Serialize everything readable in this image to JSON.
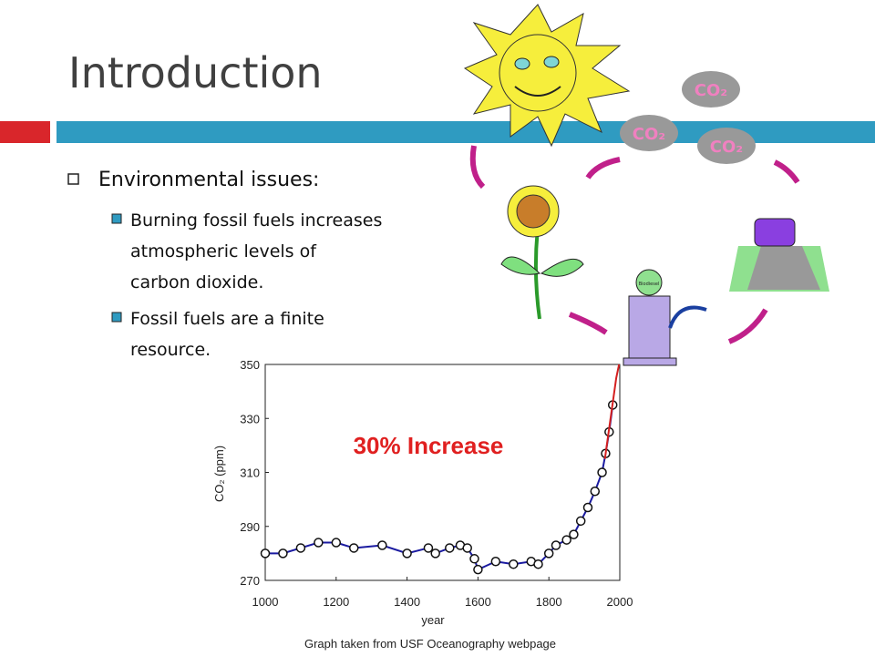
{
  "slide": {
    "title": "Introduction",
    "bullet": "Environmental issues:",
    "sub_bullets": [
      [
        "Burning fossil fuels increases",
        "atmospheric levels of",
        "carbon dioxide."
      ],
      [
        "Fossil fuels are a finite",
        "resource."
      ]
    ],
    "caption": "Graph taken from USF Oceanography webpage",
    "cloud_label": "CO₂",
    "pump_label": "Biodiesel"
  },
  "chart_data": {
    "type": "line",
    "annotation": "30% Increase",
    "xlabel": "year",
    "ylabel": "CO₂ (ppm)",
    "xlim": [
      1000,
      2000
    ],
    "ylim": [
      270,
      350
    ],
    "xticks": [
      1000,
      1200,
      1400,
      1600,
      1800,
      2000
    ],
    "yticks": [
      270,
      290,
      310,
      330,
      350
    ],
    "series": [
      {
        "color": "#1a1aa0",
        "markers": true,
        "x": [
          1000,
          1050,
          1100,
          1150,
          1200,
          1250,
          1330,
          1400,
          1460,
          1480,
          1520,
          1550,
          1570,
          1590,
          1600,
          1650,
          1700,
          1750,
          1770,
          1800,
          1820,
          1850,
          1870,
          1890,
          1910,
          1930,
          1950,
          1960,
          1970,
          1980
        ],
        "values": [
          280,
          280,
          282,
          284,
          284,
          282,
          283,
          280,
          282,
          280,
          282,
          283,
          282,
          278,
          274,
          277,
          276,
          277,
          276,
          280,
          283,
          285,
          287,
          292,
          297,
          303,
          310,
          317,
          325,
          335
        ]
      },
      {
        "color": "#d42020",
        "markers": false,
        "x": [
          1958,
          1975,
          1990,
          1998
        ],
        "values": [
          315,
          331,
          345,
          350
        ]
      }
    ]
  }
}
